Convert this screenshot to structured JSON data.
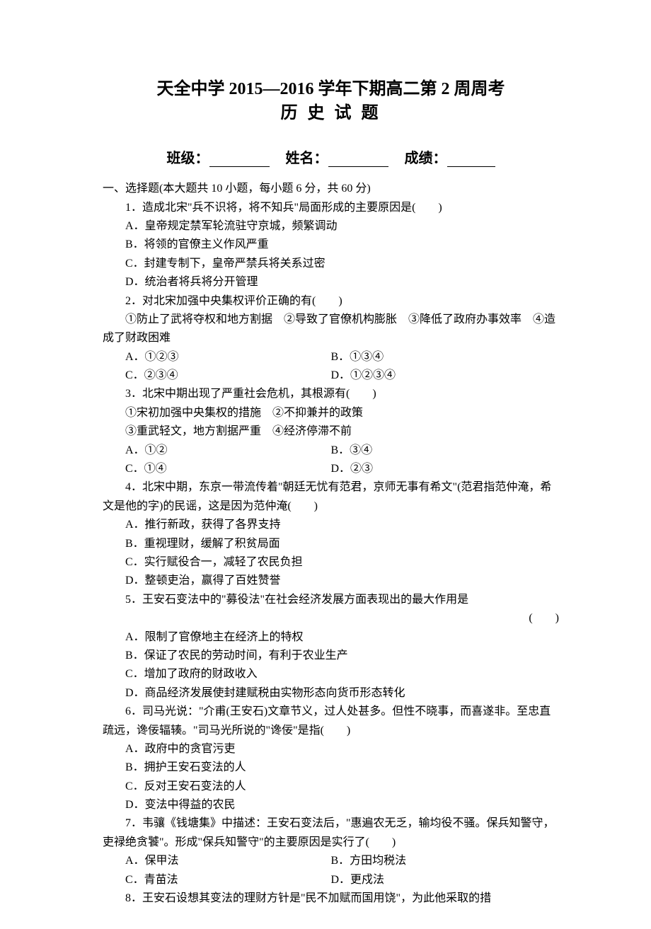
{
  "title": {
    "line1": "天全中学 2015—2016 学年下期高二第 2 周周考",
    "line2": "历 史 试 题"
  },
  "info": {
    "class_label": "班级：",
    "name_label": "姓名：",
    "score_label": "成绩："
  },
  "section_header": "一、选择题(本大题共 10 小题，每小题 6 分，共 60 分)",
  "questions": {
    "q1": {
      "text": "1．造成北宋\"兵不识将，将不知兵\"局面形成的主要原因是(　　)",
      "options": {
        "a": "A．皇帝规定禁军轮流驻守京城，频繁调动",
        "b": "B．将领的官僚主义作风严重",
        "c": "C．封建专制下，皇帝严禁兵将关系过密",
        "d": "D．统治者将兵将分开管理"
      }
    },
    "q2": {
      "text": "2．对北宋加强中央集权评价正确的有(　　)",
      "sub": "①防止了武将夺权和地方割据　②导致了官僚机构膨胀　③降低了政府办事效率　④造成了财政困难",
      "options": {
        "a": "A．①②③",
        "b": "B．①③④",
        "c": "C．②③④",
        "d": "D．①②③④"
      }
    },
    "q3": {
      "text": "3．北宋中期出现了严重社会危机，其根源有(　　)",
      "sub1": "①宋初加强中央集权的措施　②不抑兼并的政策",
      "sub2": "③重武轻文，地方割据严重　④经济停滞不前",
      "options": {
        "a": "A．①②",
        "b": "B．③④",
        "c": "C．①④",
        "d": "D．②③"
      }
    },
    "q4": {
      "text": "4．北宋中期，东京一带流传着\"朝廷无忧有范君，京师无事有希文\"(范君指范仲淹，希文是他的字)的民谣，这是因为范仲淹(　　)",
      "options": {
        "a": "A．推行新政，获得了各界支持",
        "b": "B．重视理财，缓解了积贫局面",
        "c": "C．实行赋役合一，减轻了农民负担",
        "d": "D．整顿吏治，赢得了百姓赞誉"
      }
    },
    "q5": {
      "text": "5．王安石变法中的\"募役法\"在社会经济发展方面表现出的最大作用是",
      "paren": "(　　)",
      "options": {
        "a": "A．限制了官僚地主在经济上的特权",
        "b": "B．保证了农民的劳动时间，有利于农业生产",
        "c": "C．增加了政府的财政收入",
        "d": "D．商品经济发展使封建赋税由实物形态向货币形态转化"
      }
    },
    "q6": {
      "text": "6．司马光说：\"介甫(王安石)文章节义，过人处甚多。但性不晓事，而喜遂非。至忠直疏远，谗佞辐辏。\"司马光所说的\"谗佞\"是指(　　)",
      "options": {
        "a": "A．政府中的贪官污吏",
        "b": "B．拥护王安石变法的人",
        "c": "C．反对王安石变法的人",
        "d": "D．变法中得益的农民"
      }
    },
    "q7": {
      "text": "7．韦骧《钱塘集》中描述：王安石变法后，\"惠遍农无乏，输均役不骚。保兵知警守，吏禄绝贪饕\"。形成\"保兵知警守\"的主要原因是实行了(　　)",
      "options": {
        "a": "A．保甲法",
        "b": "B．方田均税法",
        "c": "C．青苗法",
        "d": "D．更戍法"
      }
    },
    "q8": {
      "text": "8．王安石设想其变法的理财方针是\"民不加赋而国用饶\"，为此他采取的措"
    }
  }
}
